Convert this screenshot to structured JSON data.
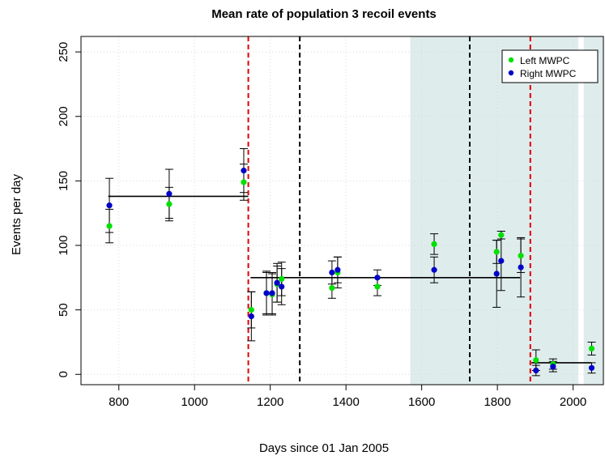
{
  "chart_data": {
    "type": "scatter",
    "title": "Mean rate of population 3 recoil events",
    "xlabel": "Days since 01 Jan 2005",
    "ylabel": "Events per day",
    "xlim": [
      700,
      2080
    ],
    "ylim": [
      -8,
      262
    ],
    "xticks": [
      800,
      1000,
      1200,
      1400,
      1600,
      1800,
      2000
    ],
    "yticks": [
      0,
      50,
      100,
      150,
      200,
      250
    ],
    "grid": true,
    "legend": "top-right",
    "shaded_regions": [
      {
        "x0": 1570,
        "x1": 2014,
        "color": "#deecec"
      },
      {
        "x0": 2028,
        "x1": 2080,
        "color": "#deecec"
      }
    ],
    "vlines": [
      {
        "x": 1142,
        "color": "#e00000"
      },
      {
        "x": 1278,
        "color": "#000000"
      },
      {
        "x": 1727,
        "color": "#000000"
      },
      {
        "x": 1887,
        "color": "#e00000"
      }
    ],
    "fit_segments": [
      {
        "x0": 772,
        "x1": 1142,
        "y": 138
      },
      {
        "x0": 1148,
        "x1": 1860,
        "y": 75
      },
      {
        "x0": 1890,
        "x1": 2048,
        "y": 9
      }
    ],
    "series": [
      {
        "name": "Left MWPC",
        "color": "#00e000",
        "points": [
          {
            "x": 775,
            "y": 115,
            "err": 13
          },
          {
            "x": 933,
            "y": 132,
            "err": 13
          },
          {
            "x": 1130,
            "y": 149,
            "err": 14
          },
          {
            "x": 1150,
            "y": 50,
            "err": 14
          },
          {
            "x": 1190,
            "y": 63,
            "err": 16
          },
          {
            "x": 1205,
            "y": 62,
            "err": 16
          },
          {
            "x": 1218,
            "y": 70,
            "err": 14
          },
          {
            "x": 1230,
            "y": 74,
            "err": 13
          },
          {
            "x": 1363,
            "y": 67,
            "err": 8
          },
          {
            "x": 1378,
            "y": 79,
            "err": 12
          },
          {
            "x": 1483,
            "y": 68,
            "err": 7
          },
          {
            "x": 1633,
            "y": 101,
            "err": 8
          },
          {
            "x": 1798,
            "y": 95,
            "err": 9
          },
          {
            "x": 1810,
            "y": 108,
            "err": 3
          },
          {
            "x": 1862,
            "y": 92,
            "err": 13
          },
          {
            "x": 1902,
            "y": 11,
            "err": 8
          },
          {
            "x": 1947,
            "y": 8,
            "err": 4
          },
          {
            "x": 2049,
            "y": 20,
            "err": 5
          }
        ]
      },
      {
        "name": "Right MWPC",
        "color": "#0000c8",
        "points": [
          {
            "x": 775,
            "y": 131,
            "err": 21
          },
          {
            "x": 933,
            "y": 140,
            "err": 19
          },
          {
            "x": 1130,
            "y": 158,
            "err": 17
          },
          {
            "x": 1150,
            "y": 45,
            "err": 19
          },
          {
            "x": 1190,
            "y": 63,
            "err": 17
          },
          {
            "x": 1205,
            "y": 63,
            "err": 16
          },
          {
            "x": 1218,
            "y": 71,
            "err": 15
          },
          {
            "x": 1230,
            "y": 68,
            "err": 14
          },
          {
            "x": 1363,
            "y": 79,
            "err": 9
          },
          {
            "x": 1378,
            "y": 81,
            "err": 10
          },
          {
            "x": 1483,
            "y": 75,
            "err": 6
          },
          {
            "x": 1633,
            "y": 81,
            "err": 10
          },
          {
            "x": 1798,
            "y": 78,
            "err": 26
          },
          {
            "x": 1810,
            "y": 88,
            "err": 23
          },
          {
            "x": 1862,
            "y": 83,
            "err": 23
          },
          {
            "x": 1902,
            "y": 3,
            "err": 4
          },
          {
            "x": 1947,
            "y": 6,
            "err": 4
          },
          {
            "x": 2049,
            "y": 5,
            "err": 4
          }
        ]
      }
    ]
  }
}
